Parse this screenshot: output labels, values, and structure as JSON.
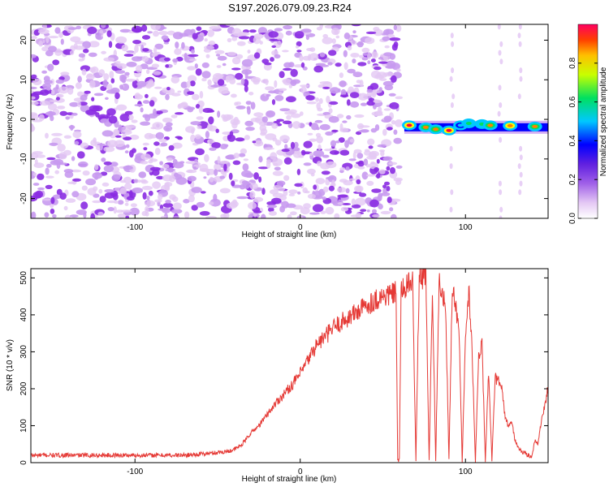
{
  "figure_title": "S197.2026.079.09.23.R24",
  "colors": {
    "snr_line": "#e53935",
    "colormap": [
      "#ffffff",
      "#e4c8f4",
      "#c89af0",
      "#8a2be2",
      "#0000ff",
      "#00c8ff",
      "#00e060",
      "#ffff00",
      "#ff8000",
      "#ff0040"
    ]
  },
  "chart_data": [
    {
      "type": "heatmap",
      "title": "",
      "xlabel": "Height of straight line (km)",
      "ylabel": "Frequency (Hz)",
      "xlim": [
        -163,
        150
      ],
      "ylim": [
        -25,
        24
      ],
      "x_ticks": [
        -100,
        0,
        100
      ],
      "x_tick_labels": [
        "-100",
        "0",
        "100"
      ],
      "y_ticks": [
        -20,
        -10,
        0,
        10,
        20
      ],
      "y_tick_labels": [
        "-20",
        "-10",
        "0",
        "10",
        "20"
      ],
      "noise_region_x": [
        -163,
        60
      ],
      "signal_band": {
        "freq_center": -2,
        "x_start": 63,
        "x_end": 150
      },
      "signal_peaks": [
        {
          "x": 66,
          "freq": -1.5,
          "amp": 0.95
        },
        {
          "x": 76,
          "freq": -2,
          "amp": 0.9
        },
        {
          "x": 82,
          "freq": -2.5,
          "amp": 0.85
        },
        {
          "x": 90,
          "freq": -2.8,
          "amp": 0.95
        },
        {
          "x": 97,
          "freq": -1.5,
          "amp": 0.6
        },
        {
          "x": 102,
          "freq": -1,
          "amp": 0.7
        },
        {
          "x": 110,
          "freq": -1.2,
          "amp": 0.65
        },
        {
          "x": 115,
          "freq": -1.5,
          "amp": 0.9
        },
        {
          "x": 127,
          "freq": -1.6,
          "amp": 0.92
        },
        {
          "x": 142,
          "freq": -1.8,
          "amp": 0.9
        }
      ],
      "colorbar": {
        "label": "Normalized spectral amplitude",
        "range": [
          0,
          1
        ],
        "ticks": [
          0,
          0.2,
          0.4,
          0.6,
          0.8
        ],
        "tick_labels": [
          "0.0",
          "0.2",
          "0.4",
          "0.6",
          "0.8"
        ]
      }
    },
    {
      "type": "line",
      "title": "",
      "xlabel": "Height of straight line (km)",
      "ylabel": "SNR (10 * v/v)",
      "xlim": [
        -163,
        150
      ],
      "ylim": [
        0,
        525
      ],
      "x_ticks": [
        -100,
        0,
        100
      ],
      "x_tick_labels": [
        "-100",
        "0",
        "100"
      ],
      "y_ticks": [
        0,
        100,
        200,
        300,
        400,
        500
      ],
      "y_tick_labels": [
        "0",
        "100",
        "200",
        "300",
        "400",
        "500"
      ],
      "series": [
        {
          "name": "SNR",
          "x": [
            -163,
            -150,
            -130,
            -110,
            -90,
            -70,
            -55,
            -45,
            -40,
            -35,
            -30,
            -25,
            -20,
            -15,
            -10,
            -5,
            0,
            5,
            10,
            15,
            20,
            25,
            30,
            35,
            40,
            45,
            50,
            55,
            58,
            59,
            60,
            61,
            62,
            65,
            68,
            70,
            72,
            74,
            76,
            78,
            80,
            82,
            84,
            86,
            88,
            90,
            92,
            94,
            96,
            98,
            100,
            102,
            104,
            106,
            108,
            110,
            112,
            114,
            116,
            118,
            120,
            122,
            124,
            126,
            128,
            130,
            132,
            134,
            136,
            138,
            140,
            142,
            144,
            146,
            148,
            150
          ],
          "values": [
            20,
            20,
            20,
            20,
            20,
            20,
            25,
            30,
            35,
            50,
            80,
            100,
            130,
            160,
            185,
            210,
            240,
            280,
            320,
            340,
            365,
            380,
            395,
            410,
            425,
            440,
            450,
            455,
            460,
            5,
            5,
            460,
            470,
            480,
            490,
            5,
            510,
            500,
            520,
            5,
            470,
            5,
            490,
            450,
            420,
            5,
            470,
            420,
            380,
            5,
            330,
            470,
            310,
            5,
            290,
            330,
            5,
            250,
            5,
            230,
            220,
            200,
            120,
            100,
            110,
            60,
            40,
            30,
            25,
            20,
            15,
            60,
            50,
            120,
            150,
            205
          ]
        }
      ]
    }
  ]
}
